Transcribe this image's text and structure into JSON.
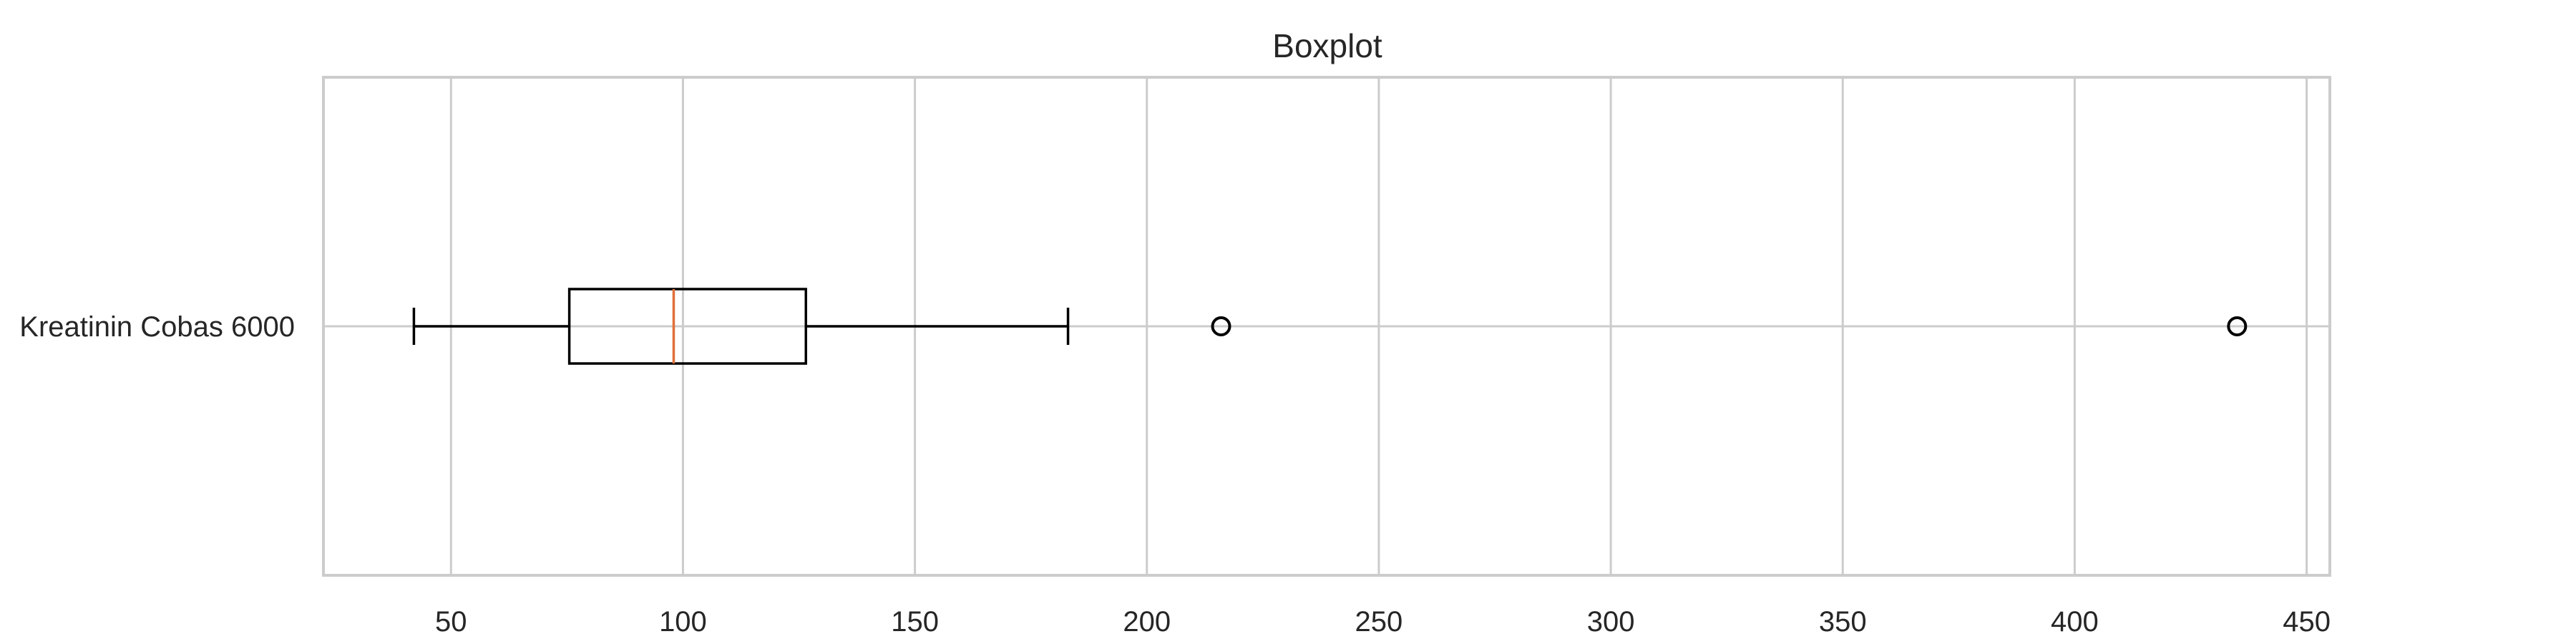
{
  "chart_data": {
    "type": "boxplot",
    "orientation": "horizontal",
    "title": "Boxplot",
    "xlabel": "",
    "ylabel": "",
    "xlim": [
      22.5,
      455
    ],
    "x_ticks": [
      50,
      100,
      150,
      200,
      250,
      300,
      350,
      400,
      450
    ],
    "x_tick_labels": [
      "50",
      "100",
      "150",
      "200",
      "250",
      "300",
      "350",
      "400",
      "450"
    ],
    "grid": true,
    "series": [
      {
        "name": "Kreatinin Cobas 6000",
        "label": "Kreatinin Cobas 6000",
        "whisker_low": 42,
        "q1": 75.5,
        "median": 98,
        "q3": 126.5,
        "whisker_high": 183,
        "outliers": [
          216,
          435
        ]
      }
    ],
    "colors": {
      "median": "#e0703a",
      "box": "#000000",
      "grid": "#cccccc"
    }
  }
}
